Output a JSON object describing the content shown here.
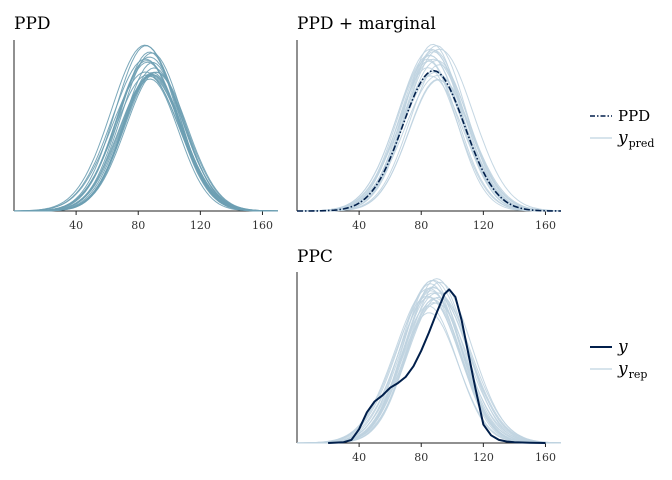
{
  "chart_data": [
    {
      "type": "density",
      "title": "PPD",
      "xlabel": "",
      "ylabel": "",
      "xlim": [
        0,
        170
      ],
      "x_ticks": [
        "40",
        "80",
        "120",
        "160"
      ],
      "x_tick_values": [
        40,
        80,
        120,
        160
      ],
      "series": [
        {
          "role": "draws",
          "count": 20,
          "color": "#6d9eb3",
          "center_range": [
            84,
            92
          ],
          "sd_range": [
            18,
            22
          ]
        }
      ]
    },
    {
      "type": "density",
      "title": "PPD + marginal",
      "xlabel": "",
      "ylabel": "",
      "xlim": [
        0,
        170
      ],
      "x_ticks": [
        "40",
        "80",
        "120",
        "160"
      ],
      "x_tick_values": [
        40,
        80,
        120,
        160
      ],
      "series": [
        {
          "role": "draws",
          "count": 20,
          "color": "#bfd3e0",
          "center_range": [
            84,
            92
          ],
          "sd_range": [
            18,
            22
          ]
        },
        {
          "role": "marginal",
          "color": "#011f4b",
          "line": "dashdot",
          "center": 88,
          "sd": 20
        }
      ],
      "legend": {
        "placement": "right",
        "items": [
          {
            "label": "PPD",
            "style": "dashdot",
            "color": "#011f4b"
          },
          {
            "label": "y",
            "sub": "pred",
            "style": "solid",
            "color": "#bfd3e0"
          }
        ]
      }
    },
    {
      "type": "density",
      "title": "PPC",
      "xlabel": "",
      "ylabel": "",
      "xlim": [
        0,
        170
      ],
      "x_ticks": [
        "40",
        "80",
        "120",
        "160"
      ],
      "x_tick_values": [
        40,
        80,
        120,
        160
      ],
      "series": [
        {
          "role": "yrep",
          "count": 20,
          "color": "#bfd3e0",
          "center_range": [
            84,
            92
          ],
          "sd_range": [
            18,
            22
          ]
        },
        {
          "role": "y",
          "color": "#011f4b",
          "line": "solid",
          "x": [
            20,
            30,
            35,
            40,
            45,
            50,
            55,
            60,
            65,
            70,
            75,
            80,
            85,
            90,
            95,
            98,
            102,
            106,
            110,
            115,
            120,
            125,
            130,
            135,
            140,
            150,
            160
          ],
          "density": [
            0.0,
            0.005,
            0.02,
            0.09,
            0.2,
            0.27,
            0.31,
            0.36,
            0.39,
            0.43,
            0.5,
            0.6,
            0.72,
            0.85,
            0.97,
            1.0,
            0.95,
            0.8,
            0.6,
            0.35,
            0.12,
            0.05,
            0.02,
            0.01,
            0.005,
            0.002,
            0.0
          ]
        }
      ],
      "legend": {
        "placement": "right",
        "items": [
          {
            "label": "y",
            "style": "solid",
            "color": "#011f4b"
          },
          {
            "label": "y",
            "sub": "rep",
            "style": "solid",
            "color": "#bfd3e0"
          }
        ]
      }
    }
  ]
}
